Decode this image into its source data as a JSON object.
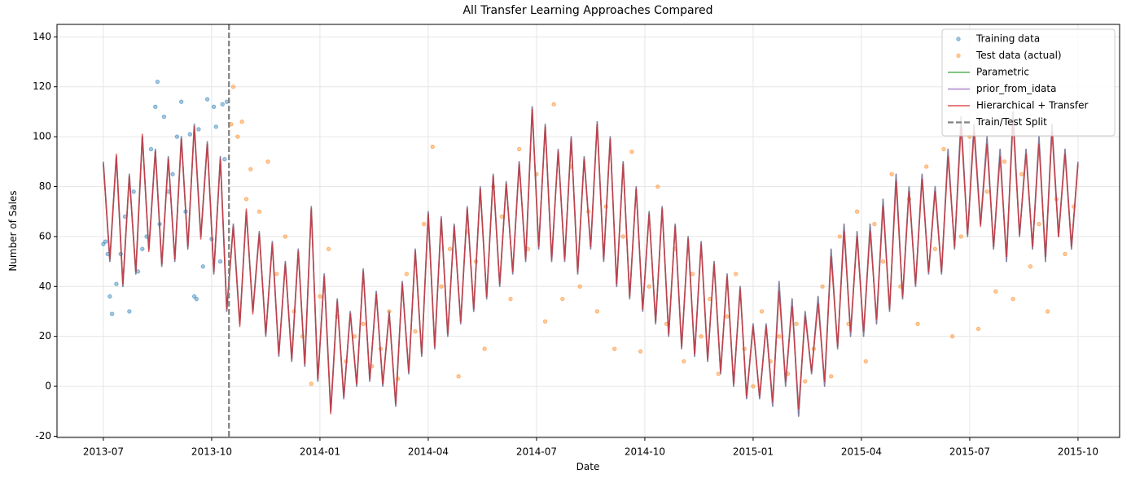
{
  "chart_data": {
    "type": "line",
    "title": "All Transfer Learning Approaches Compared",
    "xlabel": "Date",
    "ylabel": "Number of Sales",
    "xlim": [
      2013.393,
      2015.846
    ],
    "ylim": [
      -20.5,
      145
    ],
    "xticks": [
      {
        "value": 2013.5,
        "label": "2013-07"
      },
      {
        "value": 2013.75,
        "label": "2013-10"
      },
      {
        "value": 2014.0,
        "label": "2014-01"
      },
      {
        "value": 2014.25,
        "label": "2014-04"
      },
      {
        "value": 2014.5,
        "label": "2014-07"
      },
      {
        "value": 2014.75,
        "label": "2014-10"
      },
      {
        "value": 2015.0,
        "label": "2015-01"
      },
      {
        "value": 2015.25,
        "label": "2015-04"
      },
      {
        "value": 2015.5,
        "label": "2015-07"
      },
      {
        "value": 2015.75,
        "label": "2015-10"
      }
    ],
    "yticks": [
      -20,
      0,
      20,
      40,
      60,
      80,
      100,
      120,
      140
    ],
    "grid": true,
    "legend": "upper right",
    "x": [
      2013.5,
      2013.515,
      2013.53,
      2013.545,
      2013.56,
      2013.575,
      2013.59,
      2013.605,
      2013.62,
      2013.635,
      2013.65,
      2013.665,
      2013.68,
      2013.695,
      2013.71,
      2013.725,
      2013.74,
      2013.755,
      2013.77,
      2013.785,
      2013.8,
      2013.815,
      2013.83,
      2013.845,
      2013.86,
      2013.875,
      2013.89,
      2013.905,
      2013.92,
      2013.935,
      2013.95,
      2013.965,
      2013.98,
      2013.995,
      2014.01,
      2014.025,
      2014.04,
      2014.055,
      2014.07,
      2014.085,
      2014.1,
      2014.115,
      2014.13,
      2014.145,
      2014.16,
      2014.175,
      2014.19,
      2014.205,
      2014.22,
      2014.235,
      2014.25,
      2014.265,
      2014.28,
      2014.295,
      2014.31,
      2014.325,
      2014.34,
      2014.355,
      2014.37,
      2014.385,
      2014.4,
      2014.415,
      2014.43,
      2014.445,
      2014.46,
      2014.475,
      2014.49,
      2014.505,
      2014.52,
      2014.535,
      2014.55,
      2014.565,
      2014.58,
      2014.595,
      2014.61,
      2014.625,
      2014.64,
      2014.655,
      2014.67,
      2014.685,
      2014.7,
      2014.715,
      2014.73,
      2014.745,
      2014.76,
      2014.775,
      2014.79,
      2014.805,
      2014.82,
      2014.835,
      2014.85,
      2014.865,
      2014.88,
      2014.895,
      2014.91,
      2014.925,
      2014.94,
      2014.955,
      2014.97,
      2014.985,
      2015.0,
      2015.015,
      2015.03,
      2015.045,
      2015.06,
      2015.075,
      2015.09,
      2015.105,
      2015.12,
      2015.135,
      2015.15,
      2015.165,
      2015.18,
      2015.195,
      2015.21,
      2015.225,
      2015.24,
      2015.255,
      2015.27,
      2015.285,
      2015.3,
      2015.315,
      2015.33,
      2015.345,
      2015.36,
      2015.375,
      2015.39,
      2015.405,
      2015.42,
      2015.435,
      2015.45,
      2015.465,
      2015.48,
      2015.495,
      2015.51,
      2015.525,
      2015.54,
      2015.555,
      2015.57,
      2015.585,
      2015.6,
      2015.615,
      2015.63,
      2015.645,
      2015.66,
      2015.675,
      2015.69,
      2015.705,
      2015.72,
      2015.735,
      2015.75
    ],
    "series": [
      {
        "name": "Training data",
        "style": "dots",
        "color": "#1f77b4",
        "x": [
          2013.5,
          2013.505,
          2013.51,
          2013.515,
          2013.52,
          2013.53,
          2013.54,
          2013.55,
          2013.56,
          2013.57,
          2013.58,
          2013.59,
          2013.6,
          2013.61,
          2013.62,
          2013.625,
          2013.63,
          2013.64,
          2013.65,
          2013.66,
          2013.67,
          2013.68,
          2013.69,
          2013.7,
          2013.71,
          2013.715,
          2013.72,
          2013.73,
          2013.74,
          2013.75,
          2013.755,
          2013.76,
          2013.77,
          2013.775,
          2013.78,
          2013.785
        ],
        "values": [
          57,
          58,
          53,
          36,
          29,
          41,
          53,
          68,
          30,
          78,
          46,
          55,
          60,
          95,
          112,
          122,
          65,
          108,
          78,
          85,
          100,
          114,
          70,
          101,
          36,
          35,
          103,
          48,
          115,
          59,
          112,
          104,
          50,
          113,
          91,
          114
        ]
      },
      {
        "name": "Test data (actual)",
        "style": "dots",
        "color": "#ff7f0e",
        "x": [
          2013.795,
          2013.8,
          2013.81,
          2013.82,
          2013.83,
          2013.84,
          2013.86,
          2013.88,
          2013.9,
          2013.92,
          2013.94,
          2013.96,
          2013.98,
          2014.0,
          2014.02,
          2014.04,
          2014.06,
          2014.08,
          2014.1,
          2014.12,
          2014.14,
          2014.16,
          2014.18,
          2014.2,
          2014.22,
          2014.24,
          2014.26,
          2014.28,
          2014.3,
          2014.32,
          2014.34,
          2014.36,
          2014.38,
          2014.4,
          2014.42,
          2014.44,
          2014.46,
          2014.48,
          2014.5,
          2014.52,
          2014.54,
          2014.56,
          2014.58,
          2014.6,
          2014.62,
          2014.64,
          2014.66,
          2014.68,
          2014.7,
          2014.72,
          2014.74,
          2014.76,
          2014.78,
          2014.8,
          2014.82,
          2014.84,
          2014.86,
          2014.88,
          2014.9,
          2014.92,
          2014.94,
          2014.96,
          2014.98,
          2015.0,
          2015.02,
          2015.04,
          2015.06,
          2015.08,
          2015.1,
          2015.12,
          2015.14,
          2015.16,
          2015.18,
          2015.2,
          2015.22,
          2015.24,
          2015.26,
          2015.28,
          2015.3,
          2015.32,
          2015.34,
          2015.36,
          2015.38,
          2015.4,
          2015.42,
          2015.44,
          2015.46,
          2015.48,
          2015.5,
          2015.52,
          2015.54,
          2015.56,
          2015.58,
          2015.6,
          2015.62,
          2015.64,
          2015.66,
          2015.68,
          2015.7,
          2015.72,
          2015.74
        ],
        "values": [
          105,
          120,
          100,
          106,
          75,
          87,
          70,
          90,
          45,
          60,
          30,
          20,
          1,
          36,
          55,
          28,
          10,
          20,
          25,
          8,
          15,
          30,
          3,
          45,
          22,
          65,
          96,
          40,
          55,
          4,
          62,
          50,
          15,
          80,
          68,
          35,
          95,
          55,
          85,
          26,
          113,
          35,
          88,
          40,
          70,
          30,
          72,
          15,
          60,
          94,
          14,
          40,
          80,
          25,
          55,
          10,
          45,
          20,
          35,
          5,
          28,
          45,
          15,
          0,
          30,
          10,
          20,
          5,
          25,
          2,
          15,
          40,
          4,
          60,
          25,
          70,
          10,
          65,
          50,
          85,
          40,
          75,
          25,
          88,
          55,
          95,
          20,
          60,
          100,
          23,
          78,
          38,
          90,
          35,
          85,
          48,
          65,
          30,
          75,
          53,
          72
        ]
      },
      {
        "name": "Parametric",
        "style": "line",
        "color": "#2ca02c",
        "values": [
          90,
          50,
          92,
          40,
          85,
          45,
          100,
          55,
          95,
          48,
          92,
          50,
          100,
          55,
          105,
          60,
          98,
          45,
          92,
          30,
          65,
          25,
          70,
          30,
          62,
          20,
          58,
          12,
          50,
          10,
          55,
          8,
          72,
          2,
          45,
          -10,
          35,
          -5,
          30,
          0,
          47,
          2,
          38,
          0,
          30,
          -8,
          42,
          5,
          55,
          12,
          70,
          15,
          68,
          20,
          65,
          25,
          72,
          30,
          80,
          35,
          85,
          40,
          82,
          45,
          90,
          50,
          112,
          55,
          105,
          50,
          95,
          50,
          100,
          45,
          92,
          55,
          106,
          50,
          100,
          40,
          90,
          35,
          80,
          30,
          70,
          25,
          72,
          20,
          65,
          15,
          60,
          12,
          58,
          10,
          50,
          5,
          45,
          0,
          40,
          -5,
          25,
          -5,
          25,
          -8,
          42,
          0,
          35,
          -12,
          30,
          5,
          36,
          0,
          55,
          15,
          65,
          20,
          62,
          20,
          65,
          25,
          75,
          30,
          85,
          35,
          80,
          40,
          85,
          45,
          80,
          45,
          95,
          55,
          108,
          60,
          105,
          65,
          100,
          55,
          95,
          50,
          110,
          60,
          95,
          55,
          100,
          50,
          105,
          60,
          95,
          55,
          90
        ]
      },
      {
        "name": "prior_from_idata",
        "style": "line",
        "color": "#9467bd",
        "values": [
          90,
          50,
          92,
          40,
          85,
          45,
          100,
          55,
          95,
          48,
          92,
          50,
          100,
          55,
          105,
          60,
          98,
          45,
          92,
          30,
          65,
          25,
          70,
          30,
          62,
          20,
          58,
          12,
          50,
          10,
          55,
          8,
          72,
          2,
          45,
          -10,
          35,
          -5,
          30,
          0,
          47,
          2,
          38,
          0,
          30,
          -8,
          42,
          5,
          55,
          12,
          70,
          15,
          68,
          20,
          65,
          25,
          72,
          30,
          80,
          35,
          85,
          40,
          82,
          45,
          90,
          50,
          112,
          55,
          105,
          50,
          95,
          50,
          100,
          45,
          92,
          55,
          106,
          50,
          100,
          40,
          90,
          35,
          80,
          30,
          70,
          25,
          72,
          20,
          65,
          15,
          60,
          12,
          58,
          10,
          50,
          5,
          45,
          0,
          40,
          -5,
          25,
          -5,
          25,
          -8,
          42,
          0,
          35,
          -12,
          30,
          5,
          36,
          0,
          55,
          15,
          65,
          20,
          62,
          20,
          65,
          25,
          75,
          30,
          85,
          35,
          80,
          40,
          85,
          45,
          80,
          45,
          95,
          55,
          108,
          60,
          105,
          65,
          100,
          55,
          95,
          50,
          110,
          60,
          95,
          55,
          100,
          50,
          105,
          60,
          95,
          55,
          90
        ]
      },
      {
        "name": "Hierarchical + Transfer",
        "style": "line",
        "color": "#d62728",
        "values": [
          89,
          51,
          93,
          41,
          84,
          46,
          101,
          54,
          94,
          49,
          91,
          51,
          99,
          56,
          104,
          59,
          97,
          46,
          91,
          31,
          64,
          24,
          71,
          29,
          61,
          21,
          57,
          13,
          49,
          11,
          54,
          9,
          71,
          3,
          44,
          -11,
          34,
          -4,
          29,
          1,
          46,
          3,
          37,
          1,
          29,
          -7,
          41,
          6,
          54,
          13,
          69,
          16,
          67,
          21,
          64,
          26,
          71,
          31,
          79,
          36,
          84,
          41,
          81,
          46,
          89,
          51,
          111,
          56,
          104,
          51,
          94,
          51,
          99,
          46,
          91,
          56,
          105,
          51,
          99,
          41,
          89,
          36,
          79,
          31,
          69,
          26,
          71,
          21,
          64,
          16,
          59,
          13,
          57,
          11,
          49,
          6,
          44,
          1,
          39,
          -4,
          24,
          -4,
          24,
          -6,
          38,
          2,
          32,
          -9,
          28,
          6,
          33,
          2,
          52,
          16,
          62,
          22,
          60,
          22,
          62,
          27,
          72,
          31,
          82,
          36,
          78,
          41,
          83,
          46,
          78,
          46,
          92,
          56,
          104,
          61,
          102,
          64,
          97,
          56,
          92,
          52,
          106,
          61,
          93,
          56,
          97,
          52,
          102,
          60,
          93,
          56,
          89
        ]
      },
      {
        "name": "Train/Test Split",
        "style": "vline",
        "color": "#808080",
        "x": 2013.79
      }
    ]
  }
}
